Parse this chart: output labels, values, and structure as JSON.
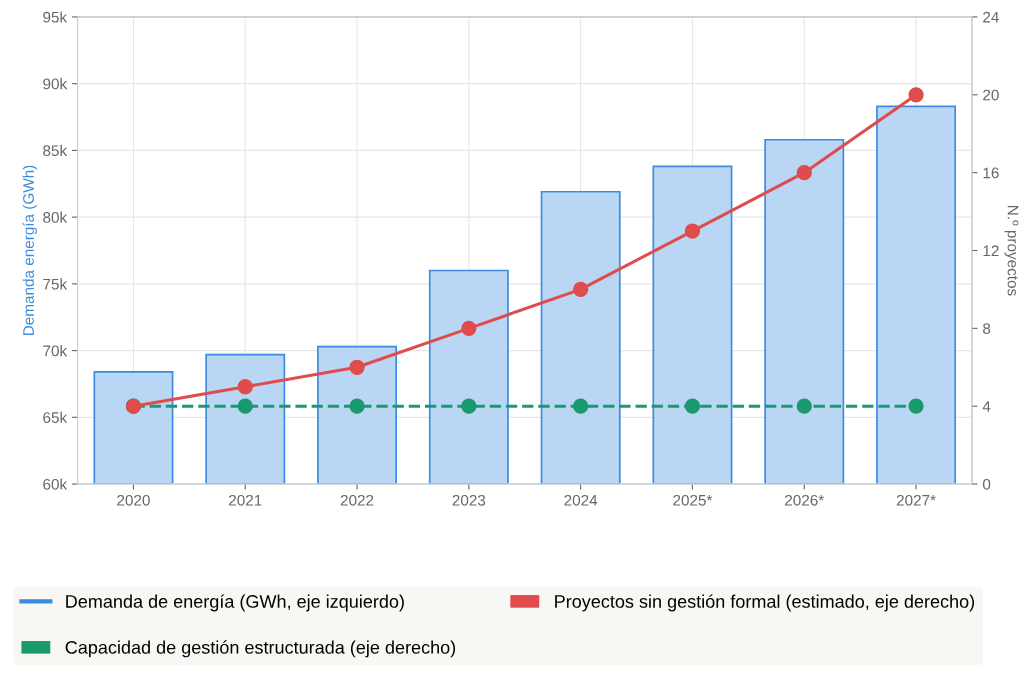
{
  "chart_data": {
    "type": "bar",
    "categories": [
      "2020",
      "2021",
      "2022",
      "2023",
      "2024",
      "2025*",
      "2026*",
      "2027*"
    ],
    "ylabel": "Demanda energía (GWh)",
    "y2label": "N.º proyectos",
    "series": [
      {
        "name": "Demanda de energía (GWh, eje izquierdo)",
        "color": "#b9d6f4",
        "values": [
          68400,
          69700,
          70300,
          76000,
          81900,
          83800,
          85800,
          88300
        ]
      },
      {
        "name": "Proyectos sin gestión formal (estimado, eje derecho)",
        "type": "line",
        "axis": "y2",
        "color": "#e04c4c",
        "line_style": "solid",
        "values": [
          4,
          5,
          6,
          8,
          10,
          13,
          16,
          20
        ]
      },
      {
        "name": "Capacidad de gestión estructurada (eje derecho)",
        "type": "line",
        "axis": "y2",
        "color": "#1a9a6c",
        "line_style": "dashed",
        "values": [
          4,
          4,
          4,
          4,
          4,
          4,
          4,
          4
        ]
      }
    ],
    "ylim": [
      60000,
      95000
    ],
    "yticks": [
      {
        "value": 60000,
        "label": "60k"
      },
      {
        "value": 65000,
        "label": "65k"
      },
      {
        "value": 70000,
        "label": "70k"
      },
      {
        "value": 75000,
        "label": "75k"
      },
      {
        "value": 80000,
        "label": "80k"
      },
      {
        "value": 85000,
        "label": "85k"
      },
      {
        "value": 90000,
        "label": "90k"
      },
      {
        "value": 95000,
        "label": "95k"
      }
    ],
    "y2lim": [
      0,
      24
    ],
    "y2ticks": [
      0,
      4,
      8,
      12,
      16,
      20,
      24
    ],
    "grid": true,
    "legend": "bottom",
    "marker": "circle"
  }
}
